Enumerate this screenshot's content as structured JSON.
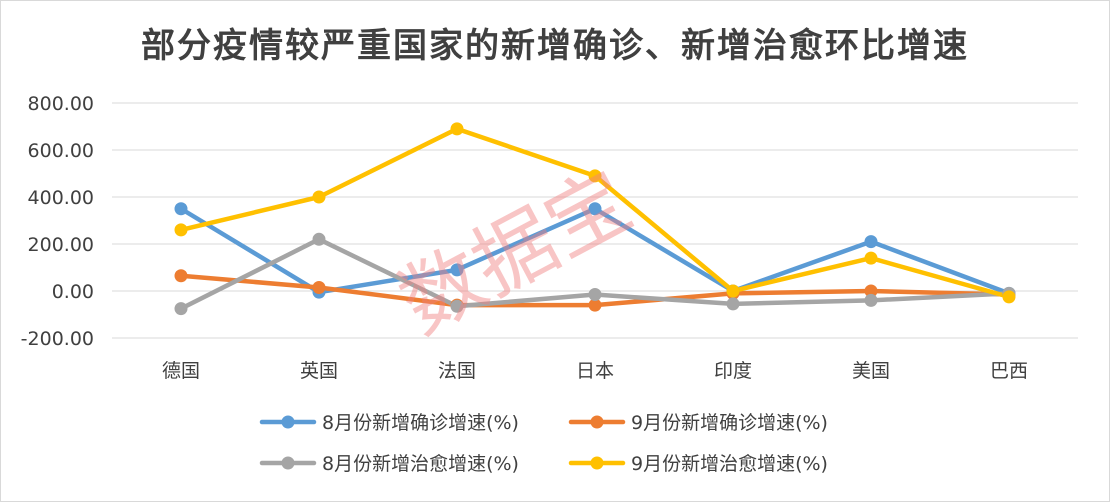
{
  "chart_data": {
    "type": "line",
    "title": "部分疫情较严重国家的新增确诊、新增治愈环比增速",
    "categories": [
      "德国",
      "英国",
      "法国",
      "日本",
      "印度",
      "美国",
      "巴西"
    ],
    "ylim": [
      -200,
      800
    ],
    "yticks": [
      "-200.00",
      "0.00",
      "200.00",
      "400.00",
      "600.00",
      "800.00"
    ],
    "ytick_values": [
      -200,
      0,
      200,
      400,
      600,
      800
    ],
    "grid": true,
    "legend_position": "bottom",
    "series": [
      {
        "name": "8月份新增确诊增速(%)",
        "color": "#5b9bd5",
        "values": [
          350,
          -5,
          90,
          350,
          0,
          210,
          -10
        ]
      },
      {
        "name": "9月份新增确诊增速(%)",
        "color": "#ed7d31",
        "values": [
          65,
          15,
          -60,
          -60,
          -10,
          0,
          -15
        ]
      },
      {
        "name": "8月份新增治愈增速(%)",
        "color": "#a5a5a5",
        "values": [
          -75,
          220,
          -65,
          -15,
          -55,
          -40,
          -10
        ]
      },
      {
        "name": "9月份新增治愈增速(%)",
        "color": "#ffc000",
        "values": [
          260,
          400,
          690,
          490,
          0,
          140,
          -25
        ]
      }
    ]
  },
  "watermark": "数据宝"
}
